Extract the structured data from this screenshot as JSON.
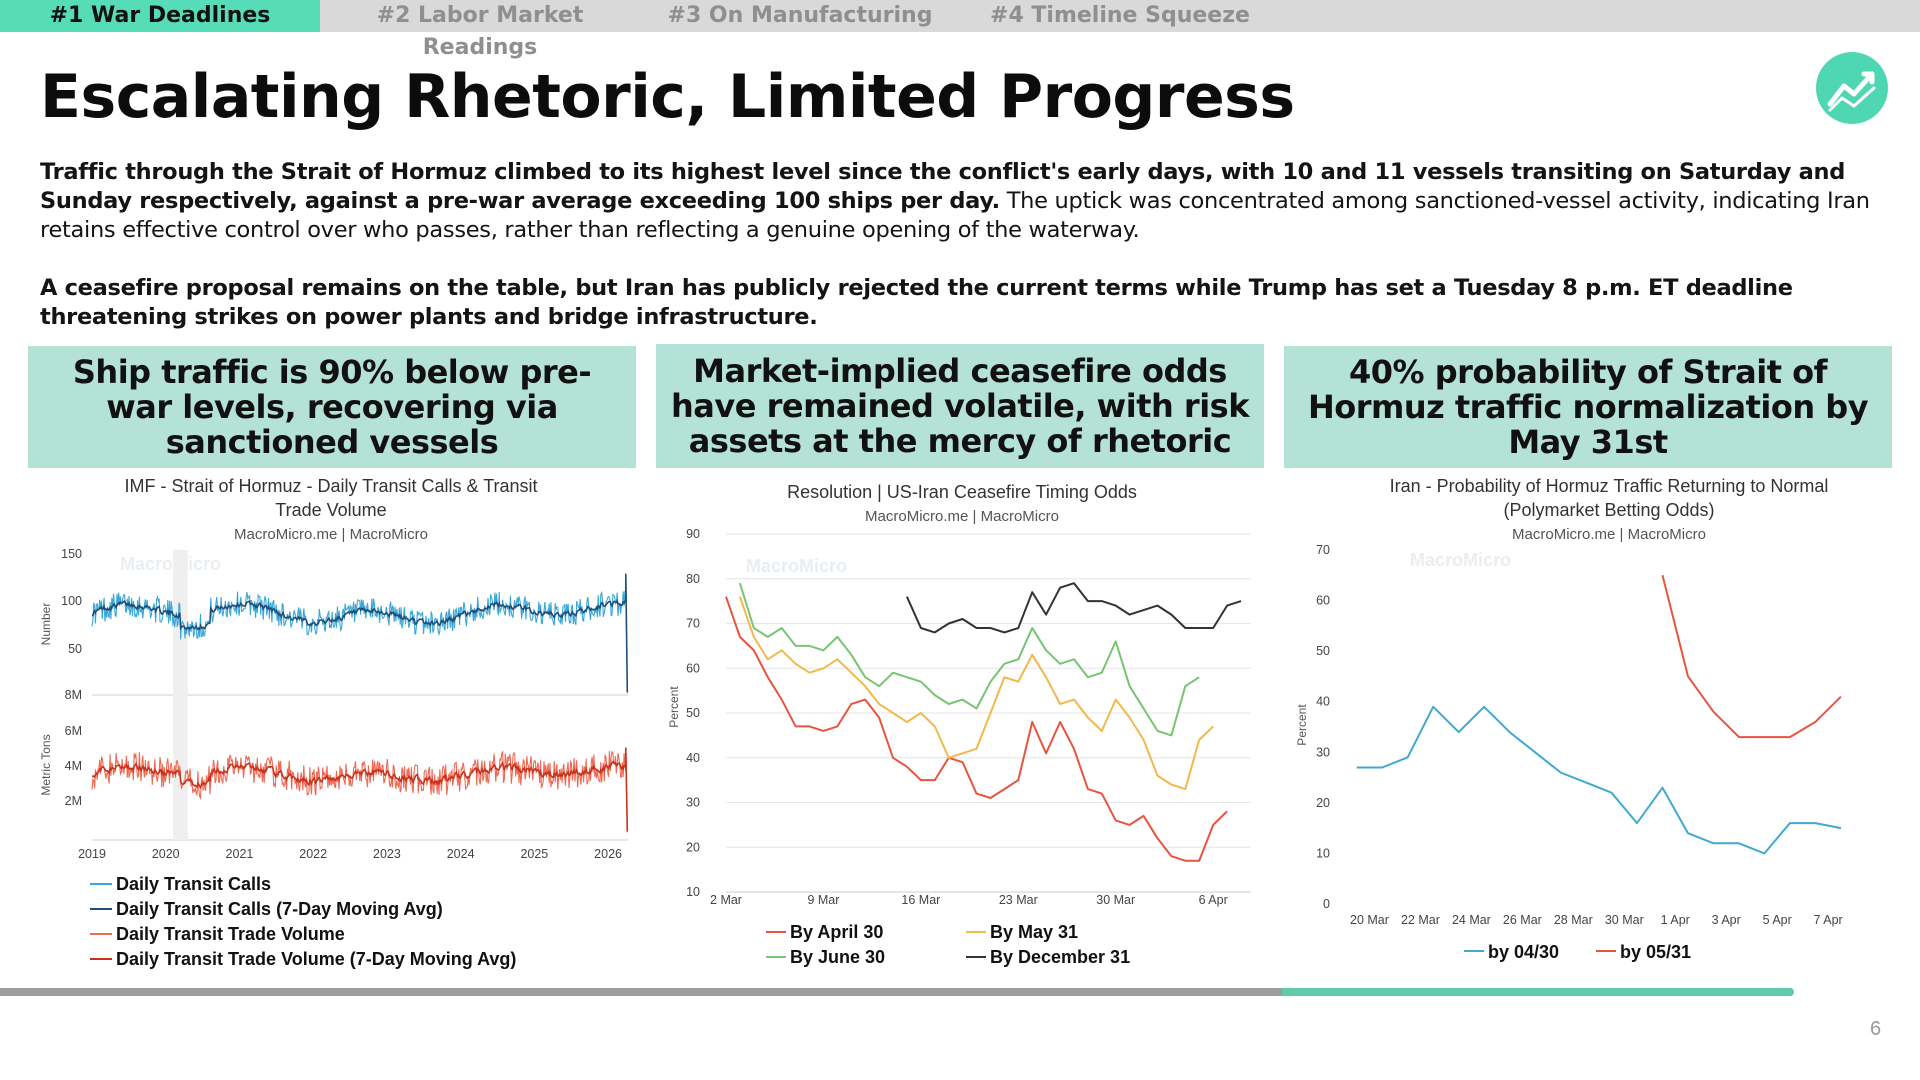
{
  "tabs": [
    {
      "label": "#1 War Deadlines",
      "active": true
    },
    {
      "label": "#2 Labor Market Readings",
      "active": false
    },
    {
      "label": "#3 On Manufacturing",
      "active": false
    },
    {
      "label": "#4 Timeline Squeeze",
      "active": false
    }
  ],
  "title": "Escalating Rhetoric, Limited Progress",
  "summary": {
    "p1_bold": "Traffic through the Strait of Hormuz climbed to its highest level since the conflict's early days, with 10 and 11 vessels transiting on Saturday and Sunday respectively, against a pre-war average exceeding 100 ships per day.",
    "p1_rest": " The uptick was concentrated among sanctioned-vessel activity, indicating Iran retains effective control over who passes, rather than reflecting a genuine opening of the waterway.",
    "p2_bold": "A ceasefire proposal remains on the table, but Iran has publicly rejected the current terms while Trump has set a Tuesday 8 p.m. ET deadline threatening strikes on power plants and bridge infrastructure."
  },
  "headlines": [
    "Ship traffic is 90% below pre-war levels, recovering via sanctioned vessels",
    "Market-implied ceasefire odds have remained volatile, with risk assets at the mercy of rhetoric",
    "40% probability of Strait of Hormuz traffic normalization by May 31st"
  ],
  "logo_icon": "trend-line-icon",
  "page_number": "6",
  "progress_fraction": 0.714,
  "watermark": "MacroMicro",
  "chart_data": [
    {
      "type": "line",
      "title_line1": "IMF - Strait of Hormuz - Daily Transit Calls & Transit",
      "title_line2": "Trade Volume",
      "subtitle": "MacroMicro.me | MacroMicro",
      "panels": [
        {
          "ylabel": "Number",
          "ylim": [
            0,
            150
          ],
          "yticks": [
            "50",
            "100",
            "150"
          ]
        },
        {
          "ylabel": "Metric Tons",
          "ylim": [
            0,
            8000000
          ],
          "yticks": [
            "2M",
            "4M",
            "6M",
            "8M"
          ]
        }
      ],
      "x_ticks": [
        "2019",
        "2020",
        "2021",
        "2022",
        "2023",
        "2024",
        "2025",
        "2026"
      ],
      "x_range": [
        2019.0,
        2026.27
      ],
      "shaded_period": [
        2020.1,
        2020.3
      ],
      "series": [
        {
          "name": "Daily Transit Calls",
          "color": "#3aa7d9",
          "panel": 0,
          "baseline": 88,
          "noise": 14,
          "end_value": 3
        },
        {
          "name": "Daily Transit Calls (7-Day Moving Avg)",
          "color": "#1f4f78",
          "panel": 0,
          "baseline": 88,
          "noise": 6,
          "end_value": 4
        },
        {
          "name": "Daily Transit Trade Volume",
          "color": "#ef6a55",
          "panel": 1,
          "baseline": 3500000,
          "noise": 900000,
          "end_value": 150000
        },
        {
          "name": "Daily Transit Trade Volume (7-Day Moving Avg)",
          "color": "#c8321d",
          "panel": 1,
          "baseline": 3500000,
          "noise": 400000,
          "end_value": 200000
        }
      ]
    },
    {
      "type": "line",
      "title": "Resolution | US-Iran Ceasefire Timing Odds",
      "subtitle": "MacroMicro.me | MacroMicro",
      "ylabel": "Percent",
      "ylim": [
        10,
        90
      ],
      "yticks": [
        10,
        20,
        30,
        40,
        50,
        60,
        70,
        80,
        90
      ],
      "x_start_day": 0,
      "x_end_day": 37,
      "x_ticks": [
        {
          "label": "2 Mar",
          "day": 0
        },
        {
          "label": "9 Mar",
          "day": 7
        },
        {
          "label": "16 Mar",
          "day": 14
        },
        {
          "label": "23 Mar",
          "day": 21
        },
        {
          "label": "30 Mar",
          "day": 28
        },
        {
          "label": "6 Apr",
          "day": 35
        }
      ],
      "series": [
        {
          "name": "By April 30",
          "color": "#e5553f",
          "start_day": 0,
          "values": [
            76,
            67,
            64,
            58,
            53,
            47,
            47,
            46,
            47,
            52,
            53,
            49,
            40,
            38,
            35,
            35,
            40,
            39,
            32,
            31,
            33,
            35,
            48,
            41,
            48,
            42,
            33,
            32,
            26,
            25,
            27,
            22,
            18,
            17,
            17,
            25,
            28
          ]
        },
        {
          "name": "By May 31",
          "color": "#f2b84b",
          "start_day": 1,
          "values": [
            76,
            67,
            62,
            64,
            61,
            59,
            60,
            62,
            59,
            56,
            52,
            50,
            48,
            50,
            47,
            40,
            41,
            42,
            50,
            58,
            57,
            63,
            58,
            52,
            53,
            49,
            46,
            53,
            49,
            44,
            36,
            34,
            33,
            44,
            47
          ]
        },
        {
          "name": "By June 30",
          "color": "#78c472",
          "start_day": 1,
          "values": [
            79,
            69,
            67,
            69,
            65,
            65,
            64,
            67,
            63,
            58,
            56,
            59,
            58,
            57,
            54,
            52,
            53,
            51,
            57,
            61,
            62,
            69,
            64,
            61,
            62,
            58,
            59,
            66,
            56,
            51,
            46,
            45,
            56,
            58
          ]
        },
        {
          "name": "By December 31",
          "color": "#333333",
          "start_day": 13,
          "values": [
            76,
            69,
            68,
            70,
            71,
            69,
            69,
            68,
            69,
            77,
            72,
            78,
            79,
            75,
            75,
            74,
            72,
            73,
            74,
            72,
            69,
            69,
            69,
            74,
            75
          ]
        }
      ]
    },
    {
      "type": "line",
      "title_line1": "Iran - Probability of Hormuz Traffic Returning to Normal",
      "title_line2": "(Polymarket Betting Odds)",
      "subtitle": "MacroMicro.me | MacroMicro",
      "ylabel": "Percent",
      "ylim": [
        0,
        70
      ],
      "yticks": [
        0,
        10,
        20,
        30,
        40,
        50,
        60,
        70
      ],
      "x_start_day": 19,
      "x_end_day": 38,
      "x_ticks": [
        {
          "label": "20 Mar",
          "day": 19
        },
        {
          "label": "22 Mar",
          "day": 21
        },
        {
          "label": "24 Mar",
          "day": 23
        },
        {
          "label": "26 Mar",
          "day": 25
        },
        {
          "label": "28 Mar",
          "day": 27
        },
        {
          "label": "30 Mar",
          "day": 29
        },
        {
          "label": "1 Apr",
          "day": 31
        },
        {
          "label": "3 Apr",
          "day": 33
        },
        {
          "label": "5 Apr",
          "day": 35
        },
        {
          "label": "7 Apr",
          "day": 37
        }
      ],
      "series": [
        {
          "name": "by 04/30",
          "color": "#3fa9d0",
          "points": [
            [
              18.5,
              27
            ],
            [
              19.5,
              27
            ],
            [
              20.5,
              29
            ],
            [
              21.5,
              39
            ],
            [
              22.5,
              34
            ],
            [
              23.5,
              39
            ],
            [
              24.5,
              34
            ],
            [
              25.5,
              30
            ],
            [
              26.5,
              26
            ],
            [
              27.5,
              24
            ],
            [
              28.5,
              22
            ],
            [
              29.5,
              16
            ],
            [
              30.5,
              23
            ],
            [
              31.5,
              14
            ],
            [
              32.5,
              12
            ],
            [
              33.5,
              12
            ],
            [
              34.5,
              10
            ],
            [
              35.5,
              16
            ],
            [
              36.5,
              16
            ],
            [
              37.5,
              15
            ]
          ]
        },
        {
          "name": "by 05/31",
          "color": "#e5553f",
          "points": [
            [
              30.5,
              65
            ],
            [
              31.5,
              45
            ],
            [
              32.5,
              38
            ],
            [
              33.5,
              33
            ],
            [
              34.5,
              33
            ],
            [
              35.5,
              33
            ],
            [
              36.5,
              36
            ],
            [
              37.5,
              41
            ]
          ]
        }
      ]
    }
  ]
}
